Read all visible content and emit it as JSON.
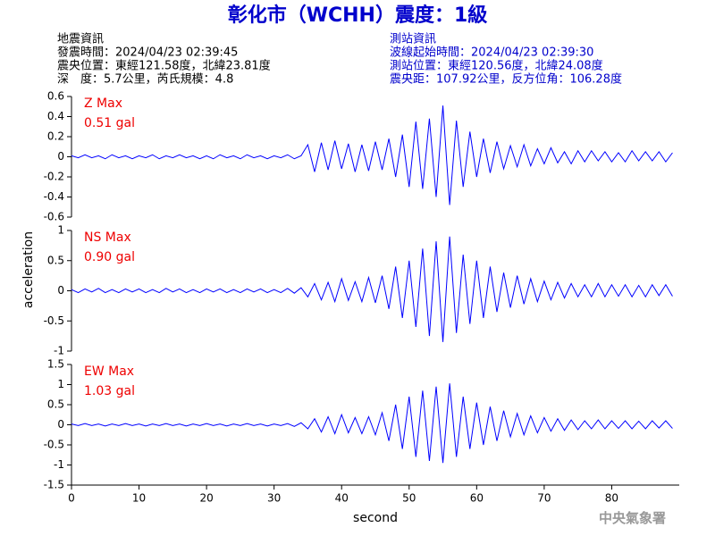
{
  "title": "彰化市（WCHH）震度：1級",
  "left_info": [
    "地震資訊",
    "發震時間：2024/04/23 02:39:45",
    "震央位置：東經121.58度，北緯23.81度",
    "深　度：5.7公里，芮氏規模：4.8"
  ],
  "right_info": [
    "測站資訊",
    "波線起始時間：2024/04/23 02:39:30",
    "測站位置：東經120.56度，北緯24.08度",
    "震央距：107.92公里，反方位角：106.28度"
  ],
  "ylabel": "acceleration",
  "footer": "中央氣象署",
  "chart_data": [
    {
      "type": "line",
      "annotations": [
        "Z Max",
        "0.51 gal"
      ],
      "xlim": [
        0,
        90
      ],
      "ylim": [
        -0.6,
        0.6
      ],
      "yticks": [
        0.6,
        0.4,
        0.2,
        0,
        -0.2,
        -0.4,
        -0.6
      ],
      "x": [
        0,
        1,
        2,
        3,
        4,
        5,
        6,
        7,
        8,
        9,
        10,
        11,
        12,
        13,
        14,
        15,
        16,
        17,
        18,
        19,
        20,
        21,
        22,
        23,
        24,
        25,
        26,
        27,
        28,
        29,
        30,
        31,
        32,
        33,
        34,
        35,
        36,
        37,
        38,
        39,
        40,
        41,
        42,
        43,
        44,
        45,
        46,
        47,
        48,
        49,
        50,
        51,
        52,
        53,
        54,
        55,
        56,
        57,
        58,
        59,
        60,
        61,
        62,
        63,
        64,
        65,
        66,
        67,
        68,
        69,
        70,
        71,
        72,
        73,
        74,
        75,
        76,
        77,
        78,
        79,
        80,
        81,
        82,
        83,
        84,
        85,
        86,
        87,
        88,
        89
      ],
      "series": [
        {
          "color": "#0000ff",
          "values": [
            0.01,
            -0.01,
            0.02,
            -0.01,
            0.01,
            -0.02,
            0.02,
            -0.01,
            0.01,
            -0.02,
            0.01,
            -0.01,
            0.02,
            -0.02,
            0.01,
            -0.01,
            0.02,
            -0.01,
            0.01,
            -0.02,
            0.01,
            -0.02,
            0.02,
            -0.01,
            0.01,
            -0.02,
            0.02,
            -0.01,
            0.01,
            -0.02,
            0.01,
            -0.01,
            0.02,
            -0.02,
            0.01,
            0.12,
            -0.15,
            0.14,
            -0.13,
            0.16,
            -0.12,
            0.13,
            -0.15,
            0.12,
            -0.14,
            0.15,
            -0.13,
            0.18,
            -0.2,
            0.22,
            -0.3,
            0.35,
            -0.32,
            0.38,
            -0.4,
            0.51,
            -0.48,
            0.36,
            -0.3,
            0.25,
            -0.2,
            0.18,
            -0.16,
            0.15,
            -0.12,
            0.11,
            -0.1,
            0.12,
            -0.09,
            0.08,
            -0.07,
            0.09,
            -0.06,
            0.05,
            -0.07,
            0.06,
            -0.05,
            0.06,
            -0.04,
            0.05,
            -0.05,
            0.04,
            -0.05,
            0.06,
            -0.04,
            0.05,
            -0.04,
            0.05,
            -0.05,
            0.04
          ]
        }
      ]
    },
    {
      "type": "line",
      "annotations": [
        "NS Max",
        "0.90 gal"
      ],
      "xlim": [
        0,
        90
      ],
      "ylim": [
        -1,
        1
      ],
      "yticks": [
        1,
        0.5,
        0,
        -0.5,
        -1
      ],
      "x": [
        0,
        1,
        2,
        3,
        4,
        5,
        6,
        7,
        8,
        9,
        10,
        11,
        12,
        13,
        14,
        15,
        16,
        17,
        18,
        19,
        20,
        21,
        22,
        23,
        24,
        25,
        26,
        27,
        28,
        29,
        30,
        31,
        32,
        33,
        34,
        35,
        36,
        37,
        38,
        39,
        40,
        41,
        42,
        43,
        44,
        45,
        46,
        47,
        48,
        49,
        50,
        51,
        52,
        53,
        54,
        55,
        56,
        57,
        58,
        59,
        60,
        61,
        62,
        63,
        64,
        65,
        66,
        67,
        68,
        69,
        70,
        71,
        72,
        73,
        74,
        75,
        76,
        77,
        78,
        79,
        80,
        81,
        82,
        83,
        84,
        85,
        86,
        87,
        88,
        89
      ],
      "series": [
        {
          "color": "#0000ff",
          "values": [
            0.02,
            -0.03,
            0.03,
            -0.02,
            0.04,
            -0.03,
            0.02,
            -0.03,
            0.03,
            -0.02,
            0.03,
            -0.03,
            0.02,
            -0.03,
            0.04,
            -0.02,
            0.03,
            -0.03,
            0.02,
            -0.03,
            0.03,
            -0.02,
            0.03,
            -0.03,
            0.02,
            -0.03,
            0.03,
            -0.02,
            0.03,
            -0.03,
            0.02,
            -0.03,
            0.04,
            -0.04,
            0.05,
            -0.1,
            0.12,
            -0.15,
            0.14,
            -0.18,
            0.2,
            -0.16,
            0.15,
            -0.18,
            0.22,
            -0.2,
            0.25,
            -0.3,
            0.4,
            -0.45,
            0.5,
            -0.6,
            0.7,
            -0.75,
            0.82,
            -0.85,
            0.9,
            -0.7,
            0.6,
            -0.55,
            0.5,
            -0.45,
            0.4,
            -0.35,
            0.3,
            -0.28,
            0.25,
            -0.22,
            0.2,
            -0.18,
            0.16,
            -0.15,
            0.14,
            -0.12,
            0.12,
            -0.1,
            0.1,
            -0.1,
            0.12,
            -0.1,
            0.1,
            -0.09,
            0.1,
            -0.1,
            0.09,
            -0.1,
            0.1,
            -0.08,
            0.1,
            -0.09
          ]
        }
      ]
    },
    {
      "type": "line",
      "annotations": [
        "EW Max",
        "1.03 gal"
      ],
      "xlim": [
        0,
        90
      ],
      "ylim": [
        -1.5,
        1.5
      ],
      "yticks": [
        1.5,
        1,
        0.5,
        0,
        -0.5,
        -1,
        -1.5
      ],
      "xticks": [
        0,
        10,
        20,
        30,
        40,
        50,
        60,
        70,
        80
      ],
      "xlabel": "second",
      "x": [
        0,
        1,
        2,
        3,
        4,
        5,
        6,
        7,
        8,
        9,
        10,
        11,
        12,
        13,
        14,
        15,
        16,
        17,
        18,
        19,
        20,
        21,
        22,
        23,
        24,
        25,
        26,
        27,
        28,
        29,
        30,
        31,
        32,
        33,
        34,
        35,
        36,
        37,
        38,
        39,
        40,
        41,
        42,
        43,
        44,
        45,
        46,
        47,
        48,
        49,
        50,
        51,
        52,
        53,
        54,
        55,
        56,
        57,
        58,
        59,
        60,
        61,
        62,
        63,
        64,
        65,
        66,
        67,
        68,
        69,
        70,
        71,
        72,
        73,
        74,
        75,
        76,
        77,
        78,
        79,
        80,
        81,
        82,
        83,
        84,
        85,
        86,
        87,
        88,
        89
      ],
      "series": [
        {
          "color": "#0000ff",
          "values": [
            0.02,
            -0.02,
            0.03,
            -0.02,
            0.02,
            -0.03,
            0.02,
            -0.02,
            0.03,
            -0.02,
            0.02,
            -0.03,
            0.02,
            -0.02,
            0.03,
            -0.02,
            0.02,
            -0.03,
            0.02,
            -0.02,
            0.03,
            -0.02,
            0.02,
            -0.03,
            0.02,
            -0.02,
            0.03,
            -0.02,
            0.02,
            -0.03,
            0.02,
            -0.02,
            0.03,
            -0.04,
            0.05,
            -0.1,
            0.15,
            -0.18,
            0.2,
            -0.22,
            0.25,
            -0.2,
            0.18,
            -0.22,
            0.2,
            -0.25,
            0.3,
            -0.4,
            0.5,
            -0.6,
            0.7,
            -0.8,
            0.85,
            -0.9,
            0.95,
            -0.95,
            1.03,
            -0.8,
            0.7,
            -0.6,
            0.55,
            -0.5,
            0.45,
            -0.4,
            0.35,
            -0.3,
            0.28,
            -0.25,
            0.22,
            -0.2,
            0.18,
            -0.16,
            0.15,
            -0.14,
            0.12,
            -0.12,
            0.1,
            -0.1,
            0.12,
            -0.1,
            0.1,
            -0.09,
            0.1,
            -0.1,
            0.09,
            -0.1,
            0.1,
            -0.08,
            0.1,
            -0.09
          ]
        }
      ]
    }
  ]
}
